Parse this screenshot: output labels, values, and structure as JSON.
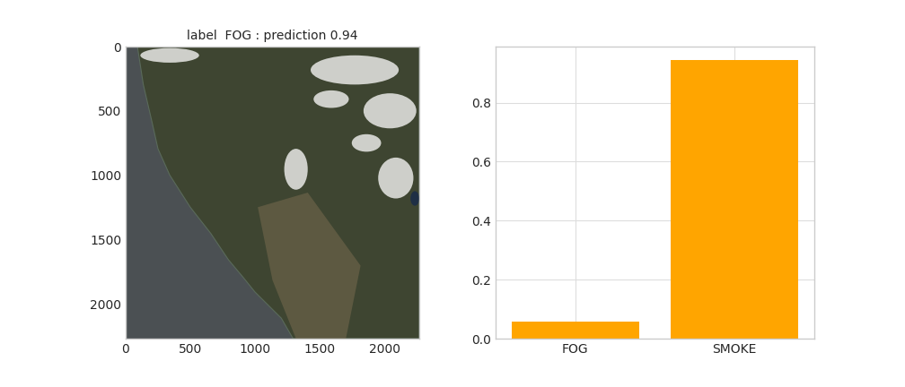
{
  "chart_data": [
    {
      "type": "image",
      "title": "label  FOG : prediction 0.94",
      "xlim": [
        0,
        2270
      ],
      "ylim": [
        2270,
        0
      ],
      "xticks": [
        0,
        500,
        1000,
        1500,
        2000
      ],
      "yticks": [
        0,
        500,
        1000,
        1500,
        2000
      ],
      "grid": false
    },
    {
      "type": "bar",
      "categories": [
        "FOG",
        "SMOKE"
      ],
      "values": [
        0.057,
        0.943
      ],
      "color": "#ffa500",
      "ylim": [
        0,
        0.99
      ],
      "yticks": [
        0.0,
        0.2,
        0.4,
        0.6,
        0.8
      ],
      "grid": true
    }
  ]
}
